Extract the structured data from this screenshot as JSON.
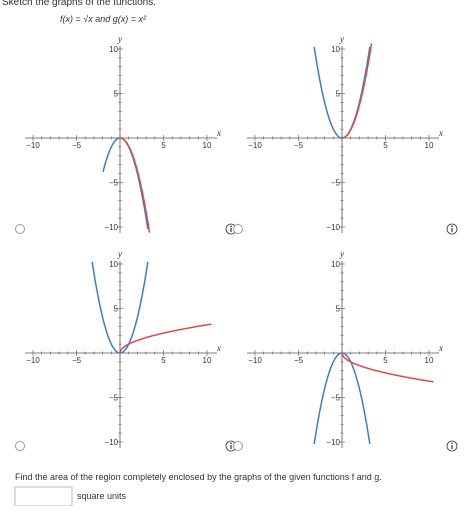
{
  "question": {
    "intro": "Sketch the graphs of the functions.",
    "functions": "f(x) = √x and g(x) = x²"
  },
  "graphs": [
    {
      "x_label": "x",
      "y_label": "y",
      "x_ticks": [
        "−10",
        "−5",
        "5",
        "10"
      ],
      "y_ticks": [
        "10",
        "5",
        "−5",
        "−10"
      ]
    },
    {
      "x_label": "x",
      "y_label": "y",
      "x_ticks": [
        "−10",
        "−5",
        "5",
        "10"
      ],
      "y_ticks": [
        "10",
        "5",
        "−5",
        "−10"
      ]
    },
    {
      "x_label": "x",
      "y_label": "y",
      "x_ticks": [
        "−10",
        "−5",
        "5",
        "10"
      ],
      "y_ticks": [
        "10",
        "5",
        "−5",
        "−10"
      ]
    },
    {
      "x_label": "x",
      "y_label": "y",
      "x_ticks": [
        "−10",
        "−5",
        "5",
        "10"
      ],
      "y_ticks": [
        "10",
        "5",
        "−5",
        "−10"
      ]
    }
  ],
  "area_question": "Find the area of the region completely enclosed by the graphs of the given functions f and g.",
  "answer_unit": "square units"
}
